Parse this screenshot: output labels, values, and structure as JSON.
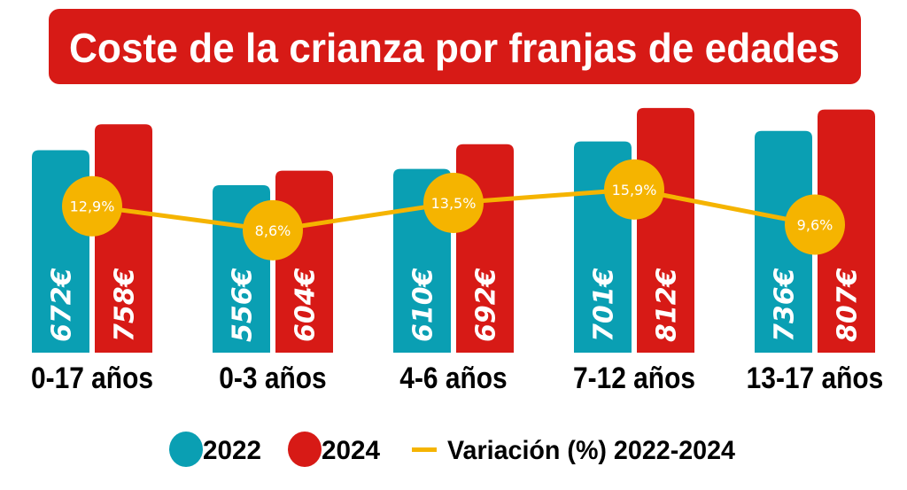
{
  "chart_data": {
    "type": "bar",
    "title": "Coste de la crianza por franjas de edades",
    "categories": [
      "0-17 años",
      "0-3 años",
      "4-6 años",
      "7-12 años",
      "13-17 años"
    ],
    "series": [
      {
        "name": "2022",
        "values": [
          672,
          556,
          610,
          701,
          736
        ],
        "labels": [
          "672€",
          "556€",
          "610€",
          "701€",
          "736€"
        ],
        "color": "#0a9fb3"
      },
      {
        "name": "2024",
        "values": [
          758,
          604,
          692,
          812,
          807
        ],
        "labels": [
          "758€",
          "604€",
          "692€",
          "812€",
          "807€"
        ],
        "color": "#d71a16"
      }
    ],
    "line_series": {
      "name": "Variación (%) 2022-2024",
      "type": "line",
      "values": [
        12.9,
        8.6,
        13.5,
        15.9,
        9.6
      ],
      "labels": [
        "12,9%",
        "8,6%",
        "13,5%",
        "15,9%",
        "9,6%"
      ],
      "color": "#f5b400"
    },
    "ylim": [
      0,
      812
    ],
    "grid": false,
    "legend_position": "bottom",
    "title_background": "#d71a16"
  }
}
